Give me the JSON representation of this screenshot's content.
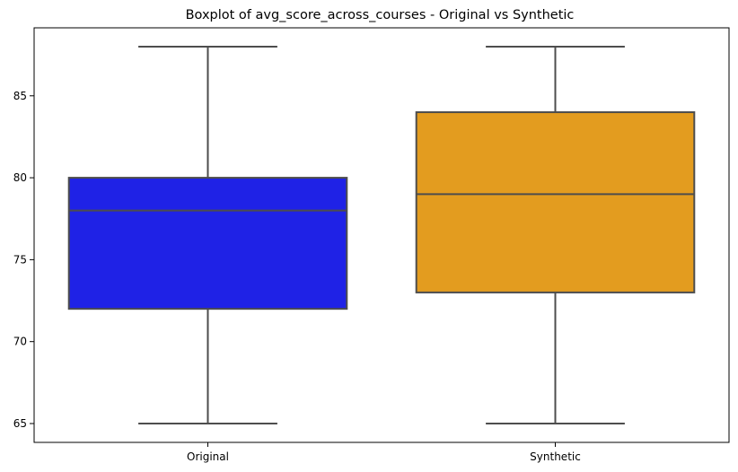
{
  "chart_data": {
    "type": "box",
    "title": "Boxplot of avg_score_across_courses - Original vs Synthetic",
    "xlabel": "",
    "ylabel": "",
    "categories": [
      "Original",
      "Synthetic"
    ],
    "boxes": [
      {
        "category": "Original",
        "min": 65,
        "q1": 72,
        "median": 78,
        "q3": 80,
        "max": 88,
        "color": "#1f22e6"
      },
      {
        "category": "Synthetic",
        "min": 65,
        "q1": 73,
        "median": 79,
        "q3": 84,
        "max": 88,
        "color": "#e39c1f"
      }
    ],
    "ylim": [
      63.85,
      89.15
    ],
    "yticks": [
      65,
      70,
      75,
      80,
      85
    ],
    "grid": false,
    "line_color": "#4d4d4d"
  }
}
